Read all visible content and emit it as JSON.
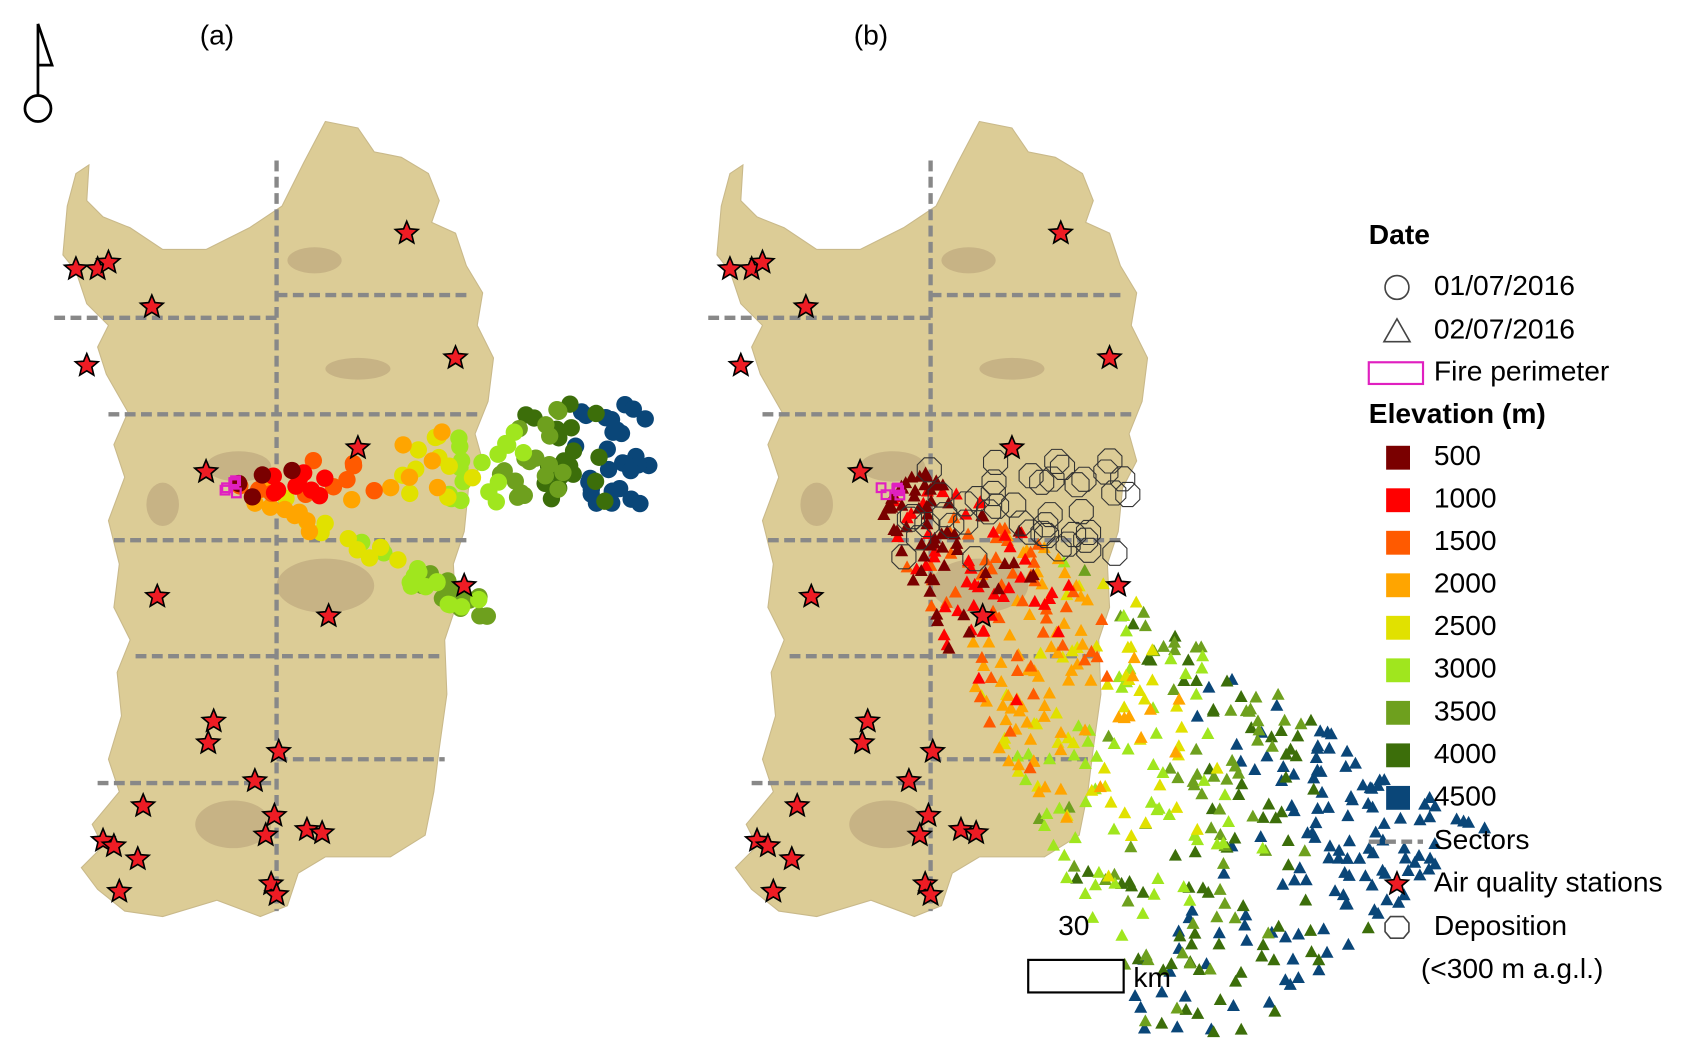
{
  "panels": [
    {
      "label": "(a)"
    },
    {
      "label": "(b)"
    }
  ],
  "legend": {
    "date_title": "Date",
    "dates": [
      {
        "label": "01/07/2016",
        "symbol": "circle"
      },
      {
        "label": "02/07/2016",
        "symbol": "triangle"
      }
    ],
    "fire_perimeter": "Fire perimeter",
    "elevation_title": "Elevation (m)",
    "elevations": [
      {
        "label": "500",
        "color": "#7a0000"
      },
      {
        "label": "1000",
        "color": "#ff0000"
      },
      {
        "label": "1500",
        "color": "#ff5a00"
      },
      {
        "label": "2000",
        "color": "#ffa500"
      },
      {
        "label": "2500",
        "color": "#e1e100"
      },
      {
        "label": "3000",
        "color": "#a0e61e"
      },
      {
        "label": "3500",
        "color": "#6ea01e"
      },
      {
        "label": "4000",
        "color": "#3c6e0a"
      },
      {
        "label": "4500",
        "color": "#0a4678"
      }
    ],
    "sectors": "Sectors",
    "stations": "Air quality stations",
    "deposition": [
      "Deposition",
      "(<300 m a.g.l.)"
    ]
  },
  "scale_bar": {
    "value": "30",
    "unit": "km"
  }
}
